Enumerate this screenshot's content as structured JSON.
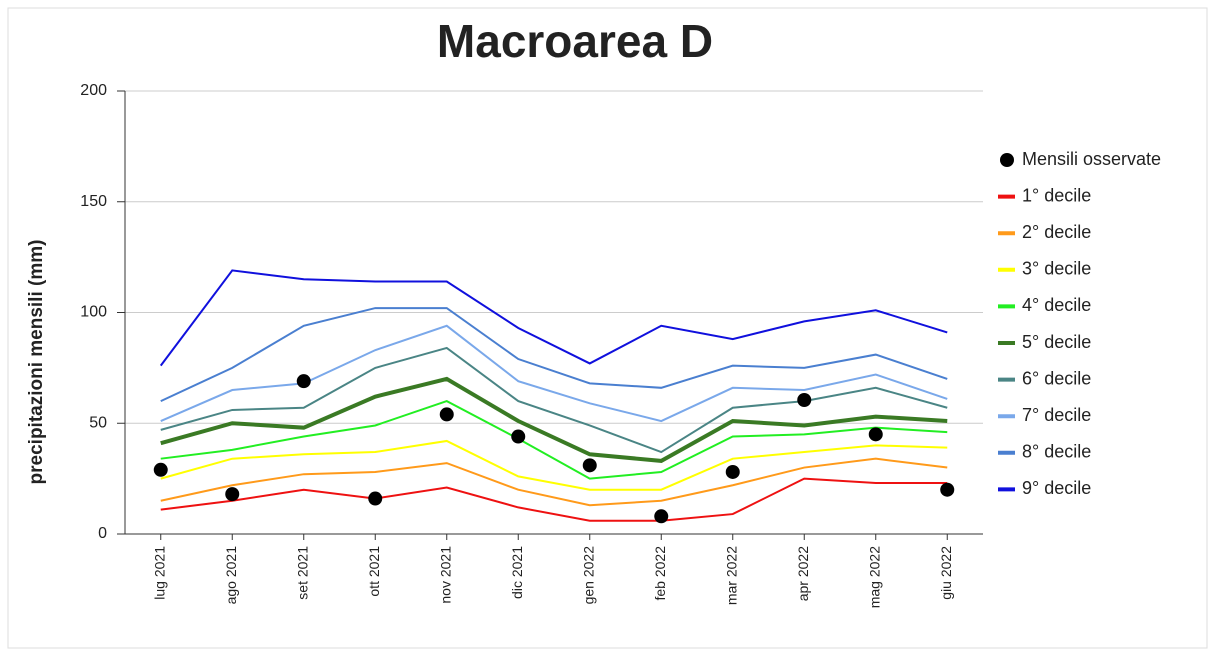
{
  "chart_data": {
    "type": "line",
    "title": "Macroarea D",
    "y_label": "precipitazioni mensili (mm)",
    "categories": [
      "lug 2021",
      "ago 2021",
      "set 2021",
      "ott 2021",
      "nov 2021",
      "dic 2021",
      "gen 2022",
      "feb 2022",
      "mar 2022",
      "apr 2022",
      "mag 2022",
      "giu 2022"
    ],
    "ylim": [
      0,
      200
    ],
    "yticks": [
      0,
      50,
      100,
      150,
      200
    ],
    "grid": true,
    "legend": "right",
    "series": [
      {
        "name": "Mensili osservate",
        "type": "scatter",
        "color": "#000000",
        "values": [
          29,
          18,
          69,
          16,
          54,
          44,
          31,
          8,
          28,
          60.5,
          45,
          20
        ]
      },
      {
        "name": "1° decile",
        "color": "#ee1111",
        "line_width": 2,
        "values": [
          11,
          15,
          20,
          16,
          21,
          12,
          6,
          6,
          9,
          25,
          23,
          23
        ]
      },
      {
        "name": "2° decile",
        "color": "#ff9a1a",
        "line_width": 2,
        "values": [
          15,
          22,
          27,
          28,
          32,
          20,
          13,
          15,
          22,
          30,
          34,
          30
        ]
      },
      {
        "name": "3° decile",
        "color": "#ffff00",
        "line_width": 2,
        "values": [
          25,
          34,
          36,
          37,
          42,
          26,
          20,
          20,
          34,
          37,
          40,
          39
        ]
      },
      {
        "name": "4° decile",
        "color": "#22ee22",
        "line_width": 2,
        "values": [
          34,
          38,
          44,
          49,
          60,
          43,
          25,
          28,
          44,
          45,
          48,
          46
        ]
      },
      {
        "name": "5° decile",
        "color": "#3a7a24",
        "line_width": 4,
        "values": [
          41,
          50,
          48,
          62,
          70,
          51,
          36,
          33,
          51,
          49,
          53,
          51
        ]
      },
      {
        "name": "6° decile",
        "color": "#4a8585",
        "line_width": 2,
        "values": [
          47,
          56,
          57,
          75,
          84,
          60,
          49,
          37,
          57,
          60,
          66,
          57
        ]
      },
      {
        "name": "7° decile",
        "color": "#7aa8ea",
        "line_width": 2,
        "values": [
          51,
          65,
          68,
          83,
          94,
          69,
          59,
          51,
          66,
          65,
          72,
          61
        ]
      },
      {
        "name": "8° decile",
        "color": "#4a7fd0",
        "line_width": 2,
        "values": [
          60,
          75,
          94,
          102,
          102,
          79,
          68,
          66,
          76,
          75,
          81,
          70
        ]
      },
      {
        "name": "9° decile",
        "color": "#1010dd",
        "line_width": 2,
        "values": [
          76,
          119,
          115,
          114,
          114,
          93,
          77,
          94,
          88,
          96,
          101,
          91
        ]
      }
    ]
  }
}
